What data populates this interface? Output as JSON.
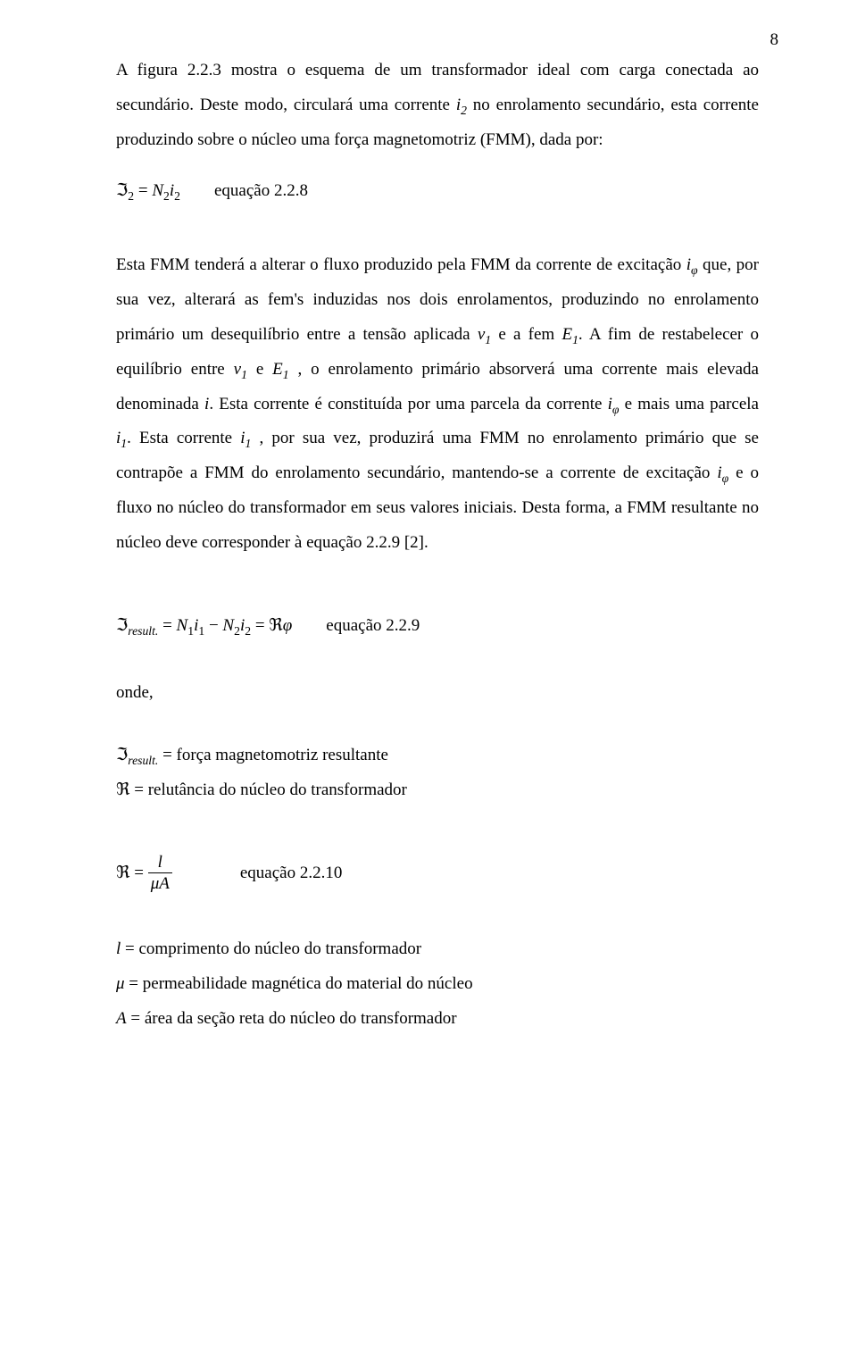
{
  "page_number": "8",
  "p1_a": "A figura 2.2.3 mostra o esquema de um transformador ideal com carga conectada ao secundário. Deste modo, circulará uma corrente ",
  "p1_i2": "i",
  "p1_i2_sub": "2",
  "p1_b": " no enrolamento secundário, esta corrente produzindo sobre o núcleo uma força magnetomotriz (FMM), dada por:",
  "eq228_formula_I": "ℑ",
  "eq228_sub2a": "2",
  "eq228_eq": " = ",
  "eq228_N": "N",
  "eq228_sub2b": "2",
  "eq228_i": "i",
  "eq228_sub2c": "2",
  "eq228_label": "equação 2.2.8",
  "p2_a": "Esta FMM tenderá a alterar o fluxo produzido pela FMM da corrente de excitação ",
  "i_phi": "i",
  "i_phi_sub": "φ",
  "p2_b": " que, por sua vez, alterará as fem's induzidas nos dois enrolamentos, produzindo no enrolamento primário um desequilíbrio entre a tensão aplicada ",
  "v1": "v",
  "v1_sub": "1",
  "p2_c": " e a fem ",
  "E1": "E",
  "E1_sub": "1",
  "p2_d": ". A fim de restabelecer o equilíbrio entre ",
  "p2_e": " e ",
  "p2_f": " , o enrolamento primário absorverá uma corrente mais elevada denominada ",
  "i_sym": "i",
  "p2_g": ".  Esta corrente é constituída por uma parcela da corrente ",
  "p2_h": " e mais uma parcela ",
  "i1": "i",
  "i1_sub": "1",
  "p2_i": ". Esta corrente ",
  "p2_j": " , por sua vez, produzirá uma FMM no enrolamento primário que se contrapõe a FMM do enrolamento secundário, mantendo-se a corrente de excitação ",
  "p2_k": " e o fluxo no núcleo do transformador em seus valores iniciais. Desta forma, a FMM resultante no núcleo deve corresponder à equação 2.2.9 [2].",
  "eq229_I": "ℑ",
  "eq229_result": "result.",
  "eq229_eq1": " = ",
  "eq229_N": "N",
  "eq229_1a": "1",
  "eq229_i": "i",
  "eq229_1b": "1",
  "eq229_minus": " − ",
  "eq229_2a": "2",
  "eq229_2b": "2",
  "eq229_eq2": " = ",
  "eq229_R": "ℜ",
  "eq229_phi": "φ",
  "eq229_label": "equação 2.2.9",
  "onde": "onde,",
  "def1_sym_I": "ℑ",
  "def1_sub": "result.",
  "def1_eq": " =",
  "def1_text": "  força magnetomotriz resultante",
  "def2_sym": "ℜ",
  "def2_eq": " =",
  "def2_text": " relutância do núcleo do transformador",
  "eq2210_R": "ℜ",
  "eq2210_eq": " = ",
  "eq2210_num": "l",
  "eq2210_den_mu": "μ",
  "eq2210_den_A": "A",
  "eq2210_label": "equação 2.2.10",
  "def3_sym": "l",
  "def3_eq": " = comprimento do núcleo do transformador",
  "def4_sym": "μ",
  "def4_eq": " = permeabilidade magnética do material do núcleo",
  "def5_sym": "A",
  "def5_eq": " = área da seção reta do núcleo do transformador"
}
